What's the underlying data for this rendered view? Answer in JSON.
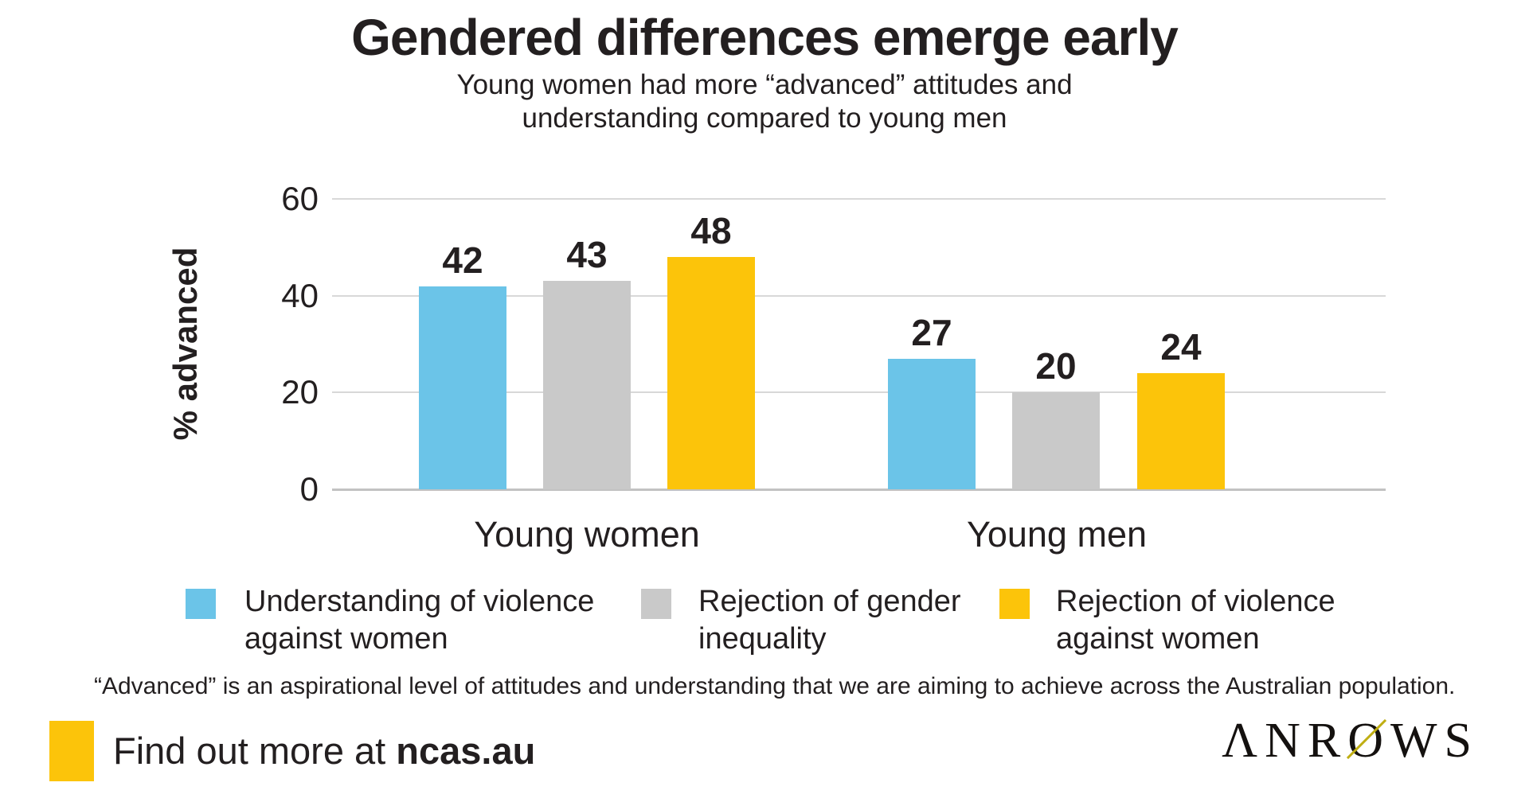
{
  "chart_data": {
    "type": "bar",
    "title": "Gendered differences emerge early",
    "subtitle": "Young women had more “advanced” attitudes and understanding compared to young men",
    "subtitle_lines": [
      "Young women had more “advanced” attitudes and",
      "understanding compared to young men"
    ],
    "xlabel": "",
    "ylabel": "% advanced",
    "ylim": [
      0,
      60
    ],
    "yticks": [
      0,
      20,
      40,
      60
    ],
    "grid": "horizontal",
    "legend_position": "bottom",
    "categories": [
      "Young women",
      "Young men"
    ],
    "series": [
      {
        "name": "Understanding of violence against women",
        "legend_lines": [
          "Understanding of violence",
          "against women"
        ],
        "color": "#6BC4E8",
        "values": [
          42,
          27
        ]
      },
      {
        "name": "Rejection of gender inequality",
        "legend_lines": [
          "Rejection of gender",
          "inequality"
        ],
        "color": "#C9C9C9",
        "values": [
          43,
          20
        ]
      },
      {
        "name": "Rejection of violence against women",
        "legend_lines": [
          "Rejection of violence",
          "against women"
        ],
        "color": "#FCC40A",
        "values": [
          48,
          24
        ]
      }
    ]
  },
  "footnote": "“Advanced” is an aspirational level of attitudes and understanding that we are aiming to achieve across the Australian population.",
  "footer": {
    "cta_text": "Find out more at ",
    "cta_link": "ncas.au",
    "accent_color": "#FCC40A",
    "logo": {
      "brand": "ANROWS",
      "part1": "ΛNR",
      "part2": "O",
      "part3": "WS",
      "slash_color": "#BFAE12"
    }
  }
}
